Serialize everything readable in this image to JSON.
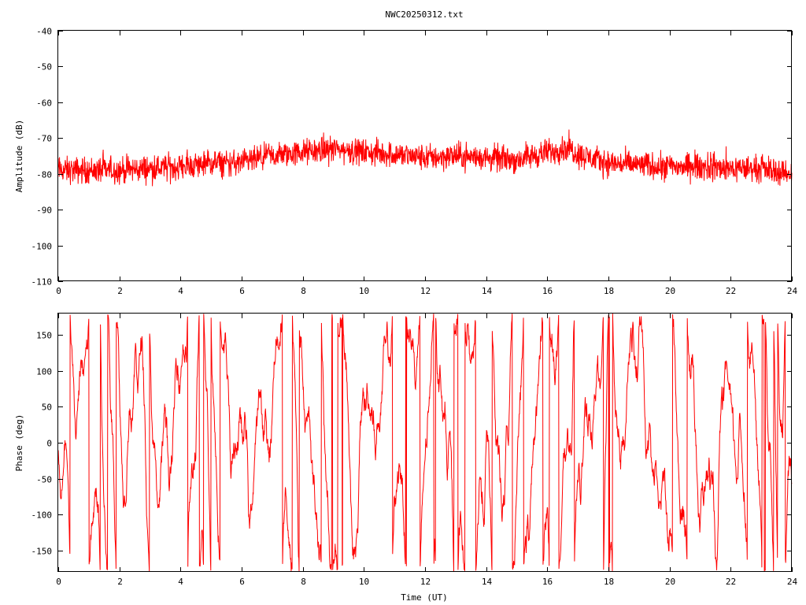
{
  "chart_data": [
    {
      "type": "line",
      "title": "NWC20250312.txt",
      "xlabel": "",
      "ylabel": "Amplitude (dB)",
      "xlim": [
        0,
        24
      ],
      "ylim": [
        -110,
        -40
      ],
      "xticks": [
        0,
        2,
        4,
        6,
        8,
        10,
        12,
        14,
        16,
        18,
        20,
        22,
        24
      ],
      "yticks": [
        -40,
        -50,
        -60,
        -70,
        -80,
        -90,
        -100,
        -110
      ],
      "xtick_labels": [
        "0",
        "2",
        "4",
        "6",
        "8",
        "10",
        "12",
        "14",
        "16",
        "18",
        "20",
        "22",
        "24"
      ],
      "ytick_labels": [
        "-40",
        "-50",
        "-60",
        "-70",
        "-80",
        "-90",
        "-100",
        "-110"
      ],
      "grid": false,
      "series": [
        {
          "color": "#ff0000",
          "x": [
            0,
            1,
            2,
            3,
            4,
            5,
            6,
            7,
            8,
            9,
            10,
            11,
            12,
            13,
            14,
            15,
            16,
            16.7,
            17,
            18,
            19,
            20,
            21,
            22,
            23,
            24
          ],
          "y": [
            -79,
            -79,
            -79,
            -78.5,
            -78,
            -77,
            -77,
            -75,
            -74,
            -73,
            -74,
            -74.5,
            -75.5,
            -75,
            -75.5,
            -76,
            -74,
            -72.5,
            -74.5,
            -77,
            -77.5,
            -78,
            -78,
            -78.5,
            -78.5,
            -80
          ],
          "spread_db": 5
        }
      ]
    },
    {
      "type": "line",
      "title": "",
      "xlabel": "Time (UT)",
      "ylabel": "Phase (deg)",
      "xlim": [
        0,
        24
      ],
      "ylim": [
        -180,
        180
      ],
      "xticks": [
        0,
        2,
        4,
        6,
        8,
        10,
        12,
        14,
        16,
        18,
        20,
        22,
        24
      ],
      "yticks": [
        150,
        100,
        50,
        0,
        -50,
        -100,
        -150
      ],
      "xtick_labels": [
        "0",
        "2",
        "4",
        "6",
        "8",
        "10",
        "12",
        "14",
        "16",
        "18",
        "20",
        "22",
        "24"
      ],
      "ytick_labels": [
        "150",
        "100",
        "50",
        "0",
        "-50",
        "-100",
        "-150"
      ],
      "grid": false,
      "series": [
        {
          "color": "#ff0000",
          "wraps_at": [
            -180,
            180
          ],
          "behavior": "phase wraps continuously between -180 and 180 degrees throughout the day"
        }
      ]
    }
  ]
}
